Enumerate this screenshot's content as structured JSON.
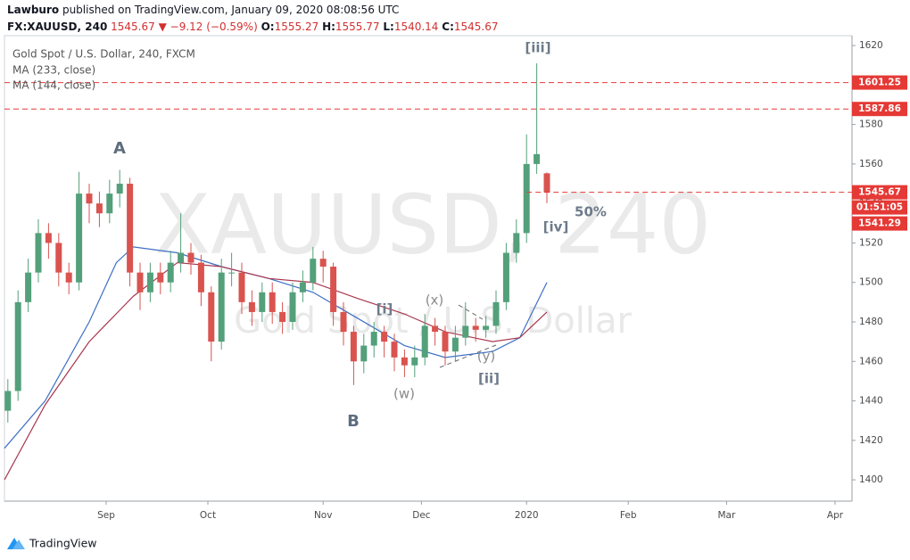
{
  "header": {
    "author": "Lawburo",
    "published": "published on TradingView.com, January 09, 2020 08:08:56 UTC",
    "symbol": "FX:XAUUSD, 240",
    "arrow": "▼",
    "change": "−9.12 (−0.59%)",
    "o": "O:",
    "h": "H:",
    "l": "L:",
    "c": "C:"
  },
  "chart_data": {
    "type": "candlestick",
    "title": "Gold Spot / U.S. Dollar, 240, FXCM",
    "watermark": "XAUUSD, 240",
    "watermark_subtitle": "Gold Spot / U.S. Dollar",
    "up_color": "#53a07a",
    "down_color": "#d9534f",
    "x": [
      -29,
      -26,
      -23,
      -20,
      -17,
      -14,
      -11,
      -8,
      -5,
      -2,
      1,
      4,
      7,
      10,
      13,
      16,
      19,
      22,
      25,
      28,
      31,
      34,
      37,
      40,
      43,
      46,
      49,
      52,
      55,
      58,
      61,
      64,
      67,
      70,
      73,
      76,
      79,
      82,
      85,
      88,
      91,
      94,
      97,
      100,
      103,
      106,
      109,
      112,
      115,
      118,
      121,
      124,
      127,
      130
    ],
    "open": [
      1435,
      1445,
      1490,
      1505,
      1525,
      1520,
      1505,
      1500,
      1545,
      1540,
      1535,
      1545,
      1550,
      1505,
      1495,
      1505,
      1500,
      1510,
      1515,
      1510,
      1495,
      1470,
      1505,
      1505,
      1490,
      1485,
      1495,
      1485,
      1480,
      1495,
      1500,
      1512,
      1508,
      1485,
      1475,
      1460,
      1468,
      1475,
      1470,
      1462,
      1458,
      1462,
      1478,
      1475,
      1465,
      1472,
      1478,
      1476,
      1478,
      1490,
      1515,
      1525,
      1560,
      1555.27
    ],
    "high": [
      1451,
      1496,
      1512,
      1532,
      1530,
      1525,
      1510,
      1556,
      1550,
      1546,
      1552,
      1557,
      1553,
      1510,
      1510,
      1510,
      1516,
      1535,
      1520,
      1514,
      1498,
      1512,
      1515,
      1510,
      1496,
      1500,
      1500,
      1490,
      1500,
      1506,
      1518,
      1516,
      1510,
      1490,
      1478,
      1474,
      1480,
      1478,
      1474,
      1466,
      1468,
      1484,
      1482,
      1478,
      1478,
      1490,
      1482,
      1483,
      1496,
      1520,
      1532,
      1575,
      1611,
      1555.77
    ],
    "low": [
      1429,
      1440,
      1485,
      1500,
      1512,
      1498,
      1494,
      1496,
      1530,
      1528,
      1530,
      1538,
      1498,
      1486,
      1490,
      1494,
      1495,
      1505,
      1504,
      1488,
      1460,
      1466,
      1498,
      1484,
      1478,
      1480,
      1479,
      1474,
      1476,
      1490,
      1496,
      1500,
      1478,
      1468,
      1448,
      1454,
      1462,
      1462,
      1455,
      1452,
      1452,
      1458,
      1468,
      1458,
      1460,
      1468,
      1470,
      1472,
      1474,
      1486,
      1510,
      1520,
      1555,
      1540.14
    ],
    "close": [
      1445,
      1490,
      1505,
      1525,
      1520,
      1505,
      1500,
      1545,
      1540,
      1535,
      1545,
      1550,
      1505,
      1495,
      1505,
      1500,
      1510,
      1515,
      1510,
      1495,
      1470,
      1505,
      1505,
      1490,
      1485,
      1495,
      1485,
      1480,
      1495,
      1500,
      1512,
      1508,
      1485,
      1475,
      1460,
      1468,
      1475,
      1470,
      1462,
      1458,
      1462,
      1478,
      1475,
      1465,
      1472,
      1478,
      1476,
      1478,
      1490,
      1515,
      1525,
      1560,
      1565,
      1545.67
    ],
    "series": [
      {
        "name": "MA (233, close)",
        "color": "#3c6fc4",
        "x": [
          -30,
          -18,
          -5,
          3,
          8,
          21,
          34,
          48,
          61,
          74,
          88,
          100,
          114,
          122,
          130
        ],
        "values": [
          1416,
          1440,
          1480,
          1510,
          1518,
          1515,
          1508,
          1502,
          1495,
          1482,
          1468,
          1462,
          1465,
          1472,
          1500
        ]
      },
      {
        "name": "MA (144, close)",
        "color": "#a8374f",
        "x": [
          -30,
          -18,
          -5,
          8,
          21,
          34,
          48,
          61,
          74,
          88,
          100,
          114,
          122,
          130
        ],
        "values": [
          1400,
          1438,
          1470,
          1493,
          1510,
          1508,
          1502,
          1500,
          1492,
          1484,
          1475,
          1470,
          1472,
          1485
        ]
      }
    ],
    "hlines": [
      1601.25,
      1587.86
    ],
    "line_color": "#e53935",
    "countdown": "01:51:05",
    "bid": 1541.29,
    "annotations": [
      "A",
      "B",
      "[i]",
      "(x)",
      "(w)",
      "(y)",
      "[ii]",
      "[iii]",
      "[iv]",
      "50%"
    ],
    "xlim": [
      -30,
      220
    ],
    "xticks": [
      {
        "value": 0,
        "label": "Sep"
      },
      {
        "value": 30,
        "label": "Oct"
      },
      {
        "value": 64,
        "label": "Nov"
      },
      {
        "value": 93,
        "label": "Dec"
      },
      {
        "value": 124,
        "label": "2020"
      },
      {
        "value": 154,
        "label": "Feb"
      },
      {
        "value": 183,
        "label": "Mar"
      },
      {
        "value": 215,
        "label": "Apr"
      }
    ],
    "ylim": [
      1389.2,
      1625
    ],
    "yticks": [
      1400,
      1420,
      1440,
      1460,
      1480,
      1500,
      1520,
      1540,
      1560,
      1580,
      1600,
      1620
    ]
  },
  "footer": {
    "brand": "TradingView"
  }
}
